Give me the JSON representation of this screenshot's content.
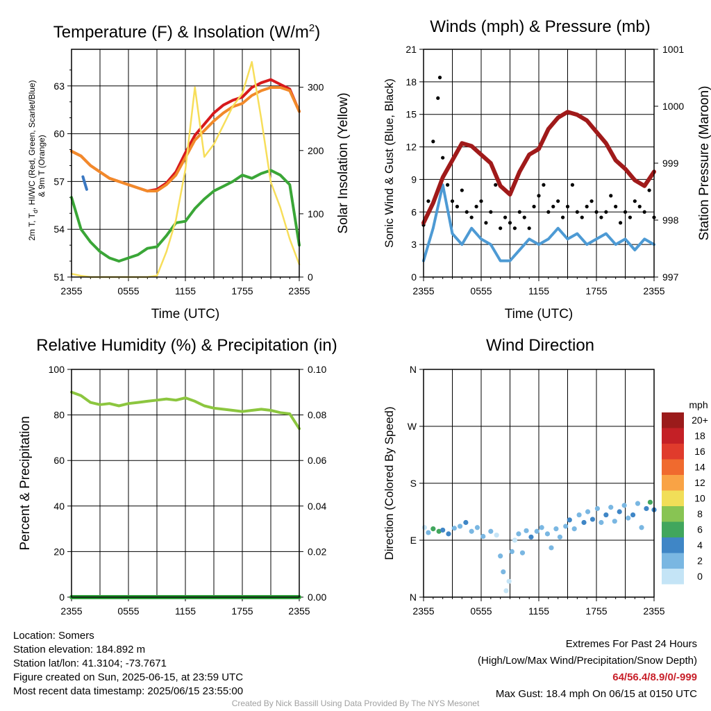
{
  "chart_data": [
    {
      "type": "line",
      "title": "Temperature (F) & Insolation (W/m2)",
      "title_parts": [
        "Temperature (F) & Insolation (W/m",
        "2",
        ")"
      ],
      "xlabel": "Time (UTC)",
      "ylabel": "2m T, Td, HI/WC (Red, Green, Scarlet/Blue) & 9m T (Orange)",
      "ylabel_lines": [
        "2m T, T",
        "d",
        ", HI/WC (Red, Green, Scarlet/Blue)",
        "& 9m T (Orange)"
      ],
      "y2label": "Solar Insolation (Yellow)",
      "x_ticks": [
        "2355",
        "0555",
        "1155",
        "1755",
        "2355"
      ],
      "ylim": [
        51,
        65.3
      ],
      "y_ticks": [
        51,
        54,
        57,
        60,
        63
      ],
      "y2lim": [
        0,
        360
      ],
      "y2_ticks": [
        0,
        100,
        200,
        300
      ],
      "series": [
        {
          "name": "2m T",
          "color": "#d7191c",
          "axis": "left",
          "x": [
            0,
            1,
            2,
            3,
            4,
            5,
            6,
            7,
            8,
            9,
            10,
            11,
            12,
            13,
            14,
            15,
            16,
            17,
            18,
            19,
            20,
            21,
            22,
            23,
            24
          ],
          "y": [
            58.9,
            58.6,
            58.0,
            57.6,
            57.2,
            57.0,
            56.8,
            56.6,
            56.4,
            56.5,
            56.9,
            57.6,
            58.8,
            59.9,
            60.6,
            61.3,
            61.8,
            62.1,
            62.3,
            62.9,
            63.2,
            63.4,
            63.1,
            62.8,
            61.4
          ]
        },
        {
          "name": "9m T",
          "color": "#f28a2a",
          "axis": "left",
          "x": [
            0,
            1,
            2,
            3,
            4,
            5,
            6,
            7,
            8,
            9,
            10,
            11,
            12,
            13,
            14,
            15,
            16,
            17,
            18,
            19,
            20,
            21,
            22,
            23,
            24
          ],
          "y": [
            58.9,
            58.6,
            58.0,
            57.6,
            57.2,
            57.0,
            56.8,
            56.6,
            56.4,
            56.4,
            56.8,
            57.4,
            58.5,
            59.6,
            60.2,
            60.8,
            61.3,
            61.7,
            61.9,
            62.4,
            62.7,
            62.9,
            62.9,
            62.7,
            61.4
          ]
        },
        {
          "name": "Td",
          "color": "#3aa637",
          "axis": "left",
          "x": [
            0,
            1,
            2,
            3,
            4,
            5,
            6,
            7,
            8,
            9,
            10,
            11,
            12,
            13,
            14,
            15,
            16,
            17,
            18,
            19,
            20,
            21,
            22,
            23,
            24
          ],
          "y": [
            56.0,
            54.0,
            53.2,
            52.6,
            52.2,
            52.0,
            52.2,
            52.4,
            52.8,
            52.9,
            53.6,
            54.4,
            54.5,
            55.3,
            55.9,
            56.4,
            56.7,
            57.0,
            57.4,
            57.2,
            57.5,
            57.7,
            57.4,
            56.8,
            53.0
          ]
        },
        {
          "name": "HI/WC",
          "color": "#3b78c2",
          "axis": "left",
          "x": [
            1.2,
            1.4,
            1.6
          ],
          "y": [
            57.3,
            56.9,
            56.5
          ]
        },
        {
          "name": "Solar Insolation",
          "color": "#f7de5a",
          "axis": "right",
          "x": [
            0,
            1,
            2,
            3,
            4,
            5,
            6,
            7,
            8,
            9,
            10,
            11,
            12,
            13,
            14,
            15,
            16,
            17,
            18,
            19,
            20,
            21,
            22,
            23,
            24
          ],
          "y": [
            5,
            2,
            0,
            0,
            0,
            0,
            0,
            0,
            0,
            2,
            40,
            90,
            170,
            300,
            190,
            210,
            240,
            270,
            290,
            340,
            250,
            150,
            110,
            60,
            20
          ]
        }
      ]
    },
    {
      "type": "line",
      "title": "Winds (mph) & Pressure (mb)",
      "xlabel": "Time (UTC)",
      "ylabel": "Sonic Wind & Gust (Blue, Black)",
      "y2label": "Station Pressure (Maroon)",
      "x_ticks": [
        "2355",
        "0555",
        "1155",
        "1755",
        "2355"
      ],
      "ylim": [
        0,
        21
      ],
      "y_ticks": [
        0,
        3,
        6,
        9,
        12,
        15,
        18,
        21
      ],
      "y2lim": [
        997,
        1001
      ],
      "y2_ticks": [
        997,
        998,
        999,
        1000,
        1001
      ],
      "series": [
        {
          "name": "Sonic Wind",
          "color": "#4d9ad4",
          "axis": "left",
          "x": [
            0,
            1,
            2,
            3,
            4,
            5,
            6,
            7,
            8,
            9,
            10,
            11,
            12,
            13,
            14,
            15,
            16,
            17,
            18,
            19,
            20,
            21,
            22,
            23,
            24
          ],
          "y": [
            1.5,
            4.5,
            8.5,
            4.0,
            3.0,
            4.5,
            3.5,
            3.0,
            1.5,
            1.5,
            2.5,
            3.5,
            3.0,
            3.5,
            4.5,
            3.5,
            4.0,
            3.0,
            3.5,
            4.0,
            3.0,
            3.5,
            2.5,
            3.5,
            3.0
          ]
        },
        {
          "name": "Gust",
          "color": "#000000",
          "axis": "left",
          "x": [
            0,
            0.5,
            1,
            1.5,
            1.7,
            2,
            2.5,
            3,
            3.5,
            4,
            4.5,
            5,
            5.5,
            6,
            6.5,
            7,
            7.5,
            8,
            8.5,
            9,
            9.5,
            10,
            10.5,
            11,
            11.5,
            12,
            12.5,
            13,
            13.5,
            14,
            14.5,
            15,
            15.5,
            16,
            16.5,
            17,
            17.5,
            18,
            18.5,
            19,
            19.5,
            20,
            20.5,
            21,
            21.5,
            22,
            22.5,
            23,
            23.5,
            24
          ],
          "y": [
            4.8,
            7.0,
            12.5,
            16.5,
            18.4,
            11.0,
            8.5,
            7.0,
            6.5,
            8.0,
            6.0,
            5.5,
            6.5,
            7.0,
            5.0,
            6.0,
            8.5,
            4.5,
            5.5,
            5.0,
            4.5,
            6.0,
            5.5,
            4.5,
            6.5,
            7.5,
            8.5,
            6.0,
            6.5,
            7.0,
            5.5,
            6.5,
            8.5,
            6.0,
            5.5,
            6.5,
            7.0,
            6.0,
            5.5,
            6.0,
            7.5,
            6.5,
            5.0,
            6.0,
            5.5,
            7.0,
            6.5,
            6.0,
            8.0,
            5.5
          ]
        },
        {
          "name": "Station Pressure",
          "color": "#a01a1a",
          "axis": "right",
          "x": [
            0,
            1,
            2,
            3,
            4,
            5,
            6,
            7,
            8,
            9,
            10,
            11,
            12,
            13,
            14,
            15,
            16,
            17,
            18,
            19,
            20,
            21,
            22,
            23,
            24
          ],
          "y": [
            997.95,
            998.3,
            998.75,
            999.05,
            999.35,
            999.3,
            999.15,
            999.0,
            998.6,
            998.45,
            998.85,
            999.15,
            999.25,
            999.6,
            999.8,
            999.9,
            999.85,
            999.75,
            999.55,
            999.35,
            999.05,
            998.9,
            998.7,
            998.6,
            998.85
          ]
        }
      ]
    },
    {
      "type": "line",
      "title": "Relative Humidity (%) & Precipitation (in)",
      "xlabel": "",
      "ylabel": "Percent & Precipitation",
      "x_ticks": [
        "2355",
        "0555",
        "1155",
        "1755",
        "2355"
      ],
      "ylim": [
        0,
        100
      ],
      "y_ticks": [
        0,
        20,
        40,
        60,
        80,
        100
      ],
      "y2lim": [
        0,
        0.1
      ],
      "y2_ticks": [
        "0.00",
        "0.02",
        "0.04",
        "0.06",
        "0.08",
        "0.10"
      ],
      "series": [
        {
          "name": "Relative Humidity",
          "color": "#8cc63f",
          "axis": "left",
          "x": [
            0,
            1,
            2,
            3,
            4,
            5,
            6,
            7,
            8,
            9,
            10,
            11,
            12,
            13,
            14,
            15,
            16,
            17,
            18,
            19,
            20,
            21,
            22,
            23,
            24
          ],
          "y": [
            90.0,
            88.5,
            85.5,
            84.5,
            85.0,
            84.0,
            85.0,
            85.5,
            86.0,
            86.5,
            87.0,
            86.5,
            87.5,
            86.0,
            84.0,
            83.0,
            82.5,
            82.0,
            81.5,
            82.0,
            82.5,
            82.0,
            81.0,
            80.5,
            74.0
          ]
        },
        {
          "name": "Precipitation",
          "color": "#2e9e3a",
          "axis": "right",
          "x": [
            0,
            24
          ],
          "y": [
            0.0,
            0.0
          ]
        }
      ]
    },
    {
      "type": "scatter",
      "title": "Wind Direction",
      "xlabel": "",
      "ylabel": "Direction (Colored By Speed)",
      "x_ticks": [
        "2355",
        "0555",
        "1155",
        "1755",
        "2355"
      ],
      "y_ticks": [
        "N",
        "E",
        "S",
        "W",
        "N"
      ],
      "ylim": [
        0,
        360
      ],
      "colorbar": {
        "unit": "mph",
        "labels": [
          "20+",
          "18",
          "16",
          "14",
          "12",
          "10",
          "8",
          "6",
          "4",
          "2",
          "0"
        ],
        "colors": [
          "#9b1b1b",
          "#c42026",
          "#e03b2c",
          "#f06a2e",
          "#f9a345",
          "#f1de58",
          "#88c453",
          "#41a65d",
          "#3f86c6",
          "#7ab7e2",
          "#c4e4f6"
        ]
      },
      "points": [
        {
          "x": 0.1,
          "y": 110,
          "speed": 1
        },
        {
          "x": 0.5,
          "y": 102,
          "speed": 3
        },
        {
          "x": 1.0,
          "y": 108,
          "speed": 7
        },
        {
          "x": 1.6,
          "y": 104,
          "speed": 7
        },
        {
          "x": 2.0,
          "y": 106,
          "speed": 5
        },
        {
          "x": 2.6,
          "y": 100,
          "speed": 4
        },
        {
          "x": 3.2,
          "y": 109,
          "speed": 3
        },
        {
          "x": 3.8,
          "y": 112,
          "speed": 2
        },
        {
          "x": 4.4,
          "y": 118,
          "speed": 4
        },
        {
          "x": 5.0,
          "y": 104,
          "speed": 3
        },
        {
          "x": 5.6,
          "y": 110,
          "speed": 2
        },
        {
          "x": 6.2,
          "y": 96,
          "speed": 3
        },
        {
          "x": 7.0,
          "y": 104,
          "speed": 2
        },
        {
          "x": 7.6,
          "y": 98,
          "speed": 1
        },
        {
          "x": 8.0,
          "y": 65,
          "speed": 2
        },
        {
          "x": 8.3,
          "y": 40,
          "speed": 2
        },
        {
          "x": 8.6,
          "y": 10,
          "speed": 0
        },
        {
          "x": 8.9,
          "y": 25,
          "speed": 1
        },
        {
          "x": 9.2,
          "y": 72,
          "speed": 3
        },
        {
          "x": 9.5,
          "y": 90,
          "speed": 1
        },
        {
          "x": 9.9,
          "y": 100,
          "speed": 2
        },
        {
          "x": 10.3,
          "y": 70,
          "speed": 3
        },
        {
          "x": 10.7,
          "y": 105,
          "speed": 2
        },
        {
          "x": 11.2,
          "y": 95,
          "speed": 4
        },
        {
          "x": 11.8,
          "y": 104,
          "speed": 2
        },
        {
          "x": 12.3,
          "y": 110,
          "speed": 3
        },
        {
          "x": 12.9,
          "y": 100,
          "speed": 2
        },
        {
          "x": 13.3,
          "y": 78,
          "speed": 3
        },
        {
          "x": 13.8,
          "y": 108,
          "speed": 2
        },
        {
          "x": 14.2,
          "y": 95,
          "speed": 3
        },
        {
          "x": 14.8,
          "y": 112,
          "speed": 2
        },
        {
          "x": 15.2,
          "y": 122,
          "speed": 4
        },
        {
          "x": 15.7,
          "y": 108,
          "speed": 2
        },
        {
          "x": 16.2,
          "y": 130,
          "speed": 3
        },
        {
          "x": 16.7,
          "y": 118,
          "speed": 5
        },
        {
          "x": 17.1,
          "y": 135,
          "speed": 2
        },
        {
          "x": 17.6,
          "y": 123,
          "speed": 4
        },
        {
          "x": 18.1,
          "y": 140,
          "speed": 3
        },
        {
          "x": 18.5,
          "y": 118,
          "speed": 2
        },
        {
          "x": 19.0,
          "y": 130,
          "speed": 4
        },
        {
          "x": 19.5,
          "y": 142,
          "speed": 3
        },
        {
          "x": 19.9,
          "y": 120,
          "speed": 2
        },
        {
          "x": 20.4,
          "y": 135,
          "speed": 4
        },
        {
          "x": 20.9,
          "y": 145,
          "speed": 3
        },
        {
          "x": 21.3,
          "y": 125,
          "speed": 2
        },
        {
          "x": 21.8,
          "y": 130,
          "speed": 4
        },
        {
          "x": 22.3,
          "y": 148,
          "speed": 2
        },
        {
          "x": 22.7,
          "y": 110,
          "speed": 2
        },
        {
          "x": 23.2,
          "y": 140,
          "speed": 4
        },
        {
          "x": 23.6,
          "y": 150,
          "speed": 6
        },
        {
          "x": 24.0,
          "y": 138,
          "speed": 4
        }
      ]
    }
  ],
  "info": {
    "location": "Location: Somers",
    "elevation": "Station elevation: 184.892 m",
    "latlon": "Station lat/lon: 41.3104; -73.7671",
    "created": "Figure created on Sun, 2025-06-15, at 23:59 UTC",
    "recent": "Most recent data timestamp: 2025/06/15 23:55:00"
  },
  "extremes": {
    "title": "Extremes For Past 24 Hours",
    "subtitle": "(High/Low/Max Wind/Precipitation/Snow Depth)",
    "values": "64/56.4/8.9/0/-999",
    "gust": "Max Gust: 18.4 mph On 06/15 at 0150 UTC"
  },
  "credit": "Created By Nick Bassill Using Data Provided By The NYS Mesonet"
}
